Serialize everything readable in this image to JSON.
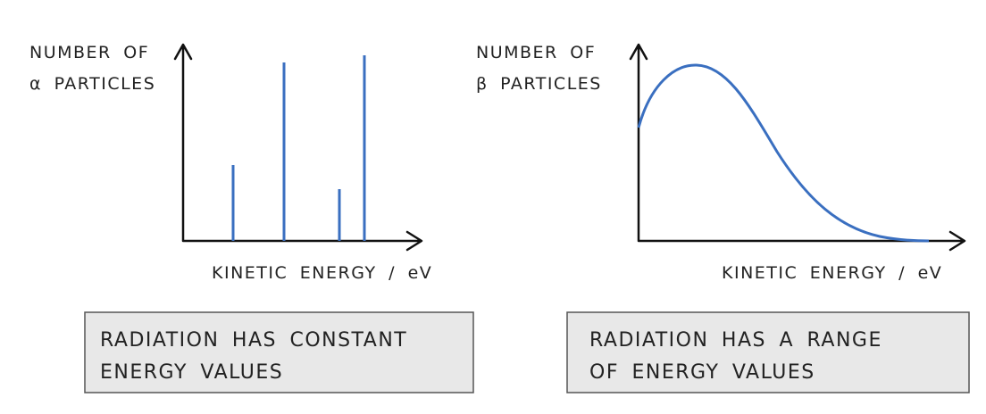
{
  "left": {
    "y_label": [
      "NUMBER OF",
      "α PARTICLES"
    ],
    "x_label": "KINETIC ENERGY / eV",
    "caption": [
      "RADIATION HAS CONSTANT",
      "ENERGY VALUES"
    ]
  },
  "right": {
    "y_label": [
      "NUMBER OF",
      "β PARTICLES"
    ],
    "x_label": "KINETIC ENERGY / eV",
    "caption": [
      "RADIATION HAS A RANGE",
      "OF ENERGY VALUES"
    ]
  }
}
